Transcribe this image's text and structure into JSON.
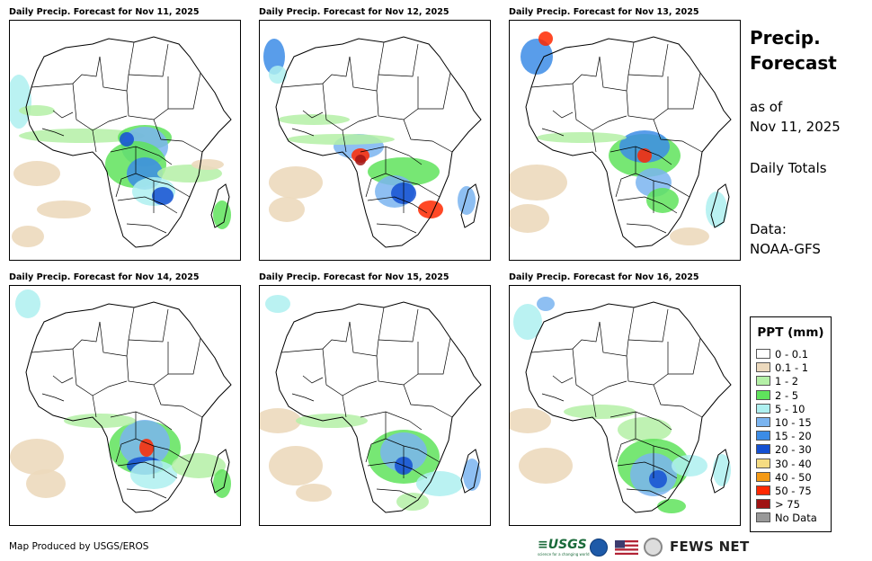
{
  "panels": [
    {
      "title": "Daily Precip. Forecast for Nov 11, 2025"
    },
    {
      "title": "Daily Precip. Forecast for Nov 12, 2025"
    },
    {
      "title": "Daily Precip. Forecast for Nov 13, 2025"
    },
    {
      "title": "Daily Precip. Forecast for Nov 14, 2025"
    },
    {
      "title": "Daily Precip. Forecast for Nov 15, 2025"
    },
    {
      "title": "Daily Precip. Forecast for Nov 16, 2025"
    }
  ],
  "side": {
    "title_line1": "Precip.",
    "title_line2": "Forecast",
    "asof_label": "as of",
    "asof_date": "Nov 11, 2025",
    "totals": "Daily Totals",
    "data_label": "Data:",
    "data_source": "NOAA-GFS"
  },
  "legend": {
    "title": "PPT (mm)",
    "items": [
      {
        "label": "0 - 0.1",
        "color": "#ffffff"
      },
      {
        "label": "0.1 - 1",
        "color": "#ecd9bd"
      },
      {
        "label": "1 - 2",
        "color": "#b4f0a6"
      },
      {
        "label": "2 - 5",
        "color": "#5fe35c"
      },
      {
        "label": "5 - 10",
        "color": "#aef0f0"
      },
      {
        "label": "10 - 15",
        "color": "#7ab4f0"
      },
      {
        "label": "15 - 20",
        "color": "#3c8ce6"
      },
      {
        "label": "20 - 30",
        "color": "#1450d2"
      },
      {
        "label": "30 - 40",
        "color": "#f5dc82"
      },
      {
        "label": "40 - 50",
        "color": "#f59a14"
      },
      {
        "label": "50 - 75",
        "color": "#ff2800"
      },
      {
        "label": "> 75",
        "color": "#a01414"
      },
      {
        "label": "No Data",
        "color": "#999999"
      }
    ]
  },
  "footer": {
    "credit": "Map Produced by USGS/EROS",
    "usgs": "≡USGS",
    "usgs_tagline": "science for a changing world",
    "fews": "FEWS NET"
  }
}
